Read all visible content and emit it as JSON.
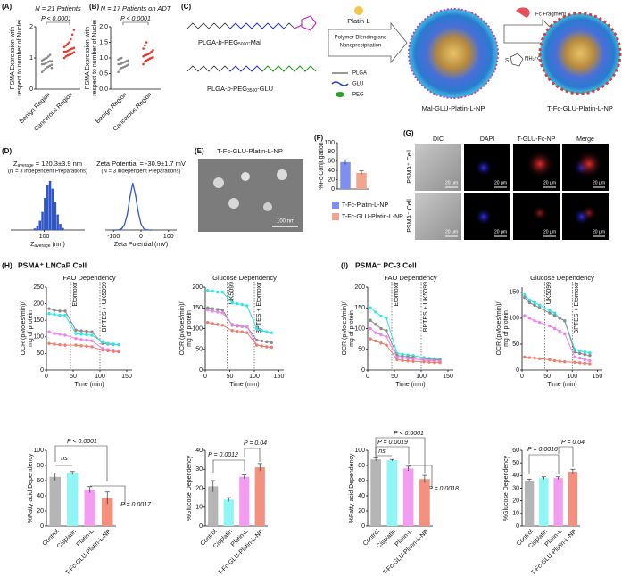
{
  "panel_labels": [
    "(A)",
    "(B)",
    "(C)",
    "(D)",
    "(E)",
    "(F)",
    "(G)"
  ],
  "section_H": {
    "letter": "(H)",
    "title": "PSMA⁺ LNCaP Cell"
  },
  "section_I": {
    "letter": "(I)",
    "title": "PSMA⁻ PC-3 Cell"
  },
  "diagram": {
    "polymer1": [
      "PLGA-",
      "b",
      "-PEG",
      "5000",
      "-Mal"
    ],
    "polymer2": [
      "PLGA-",
      "b",
      "-PEG",
      "3500",
      "-GLU"
    ],
    "drug": "Platin-L",
    "process": [
      "Polymer Blending and",
      "Nanoprecipitation"
    ],
    "legend": [
      "PLGA",
      "GLU",
      "PEG"
    ],
    "np1": "Mal-GLU-Platin-L-NP",
    "fragment": "Fc Fragment",
    "reagent_s": "S",
    "reagent": "NH₂⁺Cl⁻",
    "np2": "T-Fc-GLU-Platin-L-NP"
  },
  "tem": {
    "title": "T-Fc-GLU-Platin-L-NP",
    "scale": "100 nm"
  },
  "microscopy": {
    "columns": [
      "DIC",
      "DAPI",
      "T-GLU-Fc-NP",
      "Merge"
    ],
    "rows": [
      "PSMA⁺ Cell",
      "PSMA⁻ Cell"
    ],
    "scale": "20 μm"
  },
  "chart_data": [
    {
      "type": "dot",
      "title": "N = 21 Patients",
      "ylabel": [
        "PSMA Expression with",
        "respect to number of Nuclei"
      ],
      "categories": [
        "Benign Region",
        "Cancerous Region"
      ],
      "colors": [
        "#8a8a8a",
        "#e8392b"
      ],
      "values": [
        [
          0.55,
          0.6,
          0.65,
          0.7,
          0.72,
          0.75,
          0.78,
          0.8,
          0.8,
          0.82,
          0.85,
          0.88,
          0.9,
          0.9,
          0.92,
          0.95,
          0.98,
          1.0,
          1.05,
          1.1,
          0.68
        ],
        [
          1.0,
          1.05,
          1.08,
          1.1,
          1.12,
          1.15,
          1.18,
          1.2,
          1.2,
          1.22,
          1.25,
          1.28,
          1.3,
          1.32,
          1.35,
          1.4,
          1.45,
          1.5,
          1.6,
          1.75,
          1.9
        ]
      ],
      "ylim": [
        0,
        2
      ],
      "yticks": [
        0,
        1,
        2
      ],
      "annotations": [
        "P < 0.0001"
      ]
    },
    {
      "type": "dot",
      "title": "N = 17 Patients on ADT",
      "ylabel": [
        "PSMA Expression with",
        "respect to number of Nuclei"
      ],
      "categories": [
        "Benign Region",
        "Cancerous Region"
      ],
      "colors": [
        "#8a8a8a",
        "#e8392b"
      ],
      "values": [
        [
          0.55,
          0.62,
          0.68,
          0.7,
          0.72,
          0.75,
          0.78,
          0.8,
          0.8,
          0.82,
          0.85,
          0.87,
          0.9,
          0.92,
          0.95,
          0.98,
          1.0
        ],
        [
          0.8,
          0.88,
          0.92,
          0.95,
          0.98,
          1.0,
          1.02,
          1.05,
          1.08,
          1.1,
          1.12,
          1.15,
          1.2,
          1.25,
          1.3,
          1.4,
          1.5
        ]
      ],
      "ylim": [
        0,
        2
      ],
      "yticks": [
        {
          "value": 0,
          "label": "0.0"
        },
        {
          "value": 0.5,
          "label": "0.5"
        },
        {
          "value": 1,
          "label": "1.0"
        },
        {
          "value": 1.5,
          "label": "1.5"
        },
        {
          "value": 2,
          "label": "2.0"
        }
      ],
      "annotations": [
        "P < 0.0001"
      ]
    },
    {
      "type": "histogram",
      "title": [
        "Z",
        "average",
        " = 120.3±3.9 nm"
      ],
      "subtitle": "(N = 3 independent Preparations)",
      "xlabel": [
        "Z",
        "average",
        " (nm)"
      ],
      "color": "#2f55c8",
      "xscale": "log",
      "bins": [
        60,
        68,
        77,
        87,
        98,
        111,
        125,
        141,
        160,
        181,
        204,
        231,
        261
      ],
      "values": [
        3,
        8,
        18,
        35,
        62,
        88,
        95,
        80,
        55,
        30,
        12,
        4
      ],
      "xlim": [
        20,
        700
      ],
      "xticks": [
        100
      ],
      "ylim": [
        0,
        100
      ]
    },
    {
      "type": "curve",
      "title": [
        "Zeta Potential = -30.9±1.7 mV"
      ],
      "subtitle": "(N = 3 independent Preparations)",
      "xlabel": [
        "Zeta Potential (mV)"
      ],
      "color": "#2f55c8",
      "x": [
        -100,
        -90,
        -80,
        -70,
        -60,
        -50,
        -40,
        -30,
        -20,
        -10,
        0,
        10,
        20,
        30,
        40
      ],
      "values": [
        0,
        0,
        0.5,
        3,
        12,
        33,
        71,
        100,
        74,
        38,
        13,
        3,
        0.5,
        0,
        0
      ],
      "xlim": [
        -130,
        130
      ],
      "xticks": [
        -100,
        0,
        100
      ],
      "ylim": [
        0,
        110
      ]
    },
    {
      "type": "bar",
      "ylabel": [
        "%Fc Conjugation"
      ],
      "series": [
        {
          "name": "T-Fc-Platin-L-NP",
          "color": "#7f8ff0",
          "values": [
            58
          ],
          "errors": [
            5
          ]
        },
        {
          "name": "T-Fc-GLU-Platin-L-NP",
          "color": "#f4a48c",
          "values": [
            35
          ],
          "errors": [
            4
          ]
        }
      ],
      "ylim": [
        0,
        100
      ],
      "yticks": [
        0,
        20,
        40,
        60,
        80,
        100
      ]
    },
    {
      "type": "line",
      "title": [
        "FAO Dependency"
      ],
      "ylabel": [
        "OCR (pMoles/min)/",
        "mg of protein"
      ],
      "xlabel": [
        "Time (min)"
      ],
      "x": [
        5,
        15,
        25,
        35,
        55,
        65,
        75,
        85,
        105,
        115,
        125,
        135
      ],
      "series": [
        {
          "color": "#8a8a8a",
          "values": [
            185,
            180,
            178,
            178,
            120,
            118,
            117,
            115,
            80,
            78,
            77,
            76
          ]
        },
        {
          "color": "#2ee6e6",
          "values": [
            170,
            168,
            165,
            165,
            110,
            108,
            106,
            105,
            85,
            80,
            78,
            76
          ]
        },
        {
          "color": "#ee82ee",
          "values": [
            115,
            110,
            108,
            105,
            95,
            92,
            90,
            88,
            65,
            62,
            60,
            58
          ]
        },
        {
          "color": "#f07c6c",
          "values": [
            80,
            78,
            76,
            75,
            75,
            73,
            72,
            70,
            60,
            58,
            56,
            55
          ]
        }
      ],
      "vlines": [
        {
          "x": 45,
          "label": "Etomoxir"
        },
        {
          "x": 100,
          "label": "BPTES + UK5099"
        }
      ],
      "xlim": [
        0,
        160
      ],
      "xticks": [
        0,
        50,
        100,
        150
      ],
      "ylim": [
        0,
        250
      ],
      "yticks": [
        0,
        50,
        100,
        150,
        200,
        250
      ]
    },
    {
      "type": "line",
      "title": [
        "Glucose Dependency"
      ],
      "ylabel": [
        "OCR (pMoles/min)/",
        "mg of protein"
      ],
      "xlabel": [
        "Time (min)"
      ],
      "x": [
        5,
        15,
        25,
        35,
        55,
        65,
        75,
        85,
        105,
        115,
        125,
        135
      ],
      "series": [
        {
          "color": "#2ee6e6",
          "values": [
            192,
            190,
            188,
            188,
            162,
            160,
            158,
            155,
            100,
            95,
            92,
            90
          ]
        },
        {
          "color": "#8a8a8a",
          "values": [
            150,
            148,
            146,
            145,
            108,
            106,
            105,
            104,
            72,
            70,
            68,
            66
          ]
        },
        {
          "color": "#ee82ee",
          "values": [
            145,
            142,
            140,
            138,
            110,
            108,
            106,
            105,
            60,
            58,
            56,
            55
          ]
        },
        {
          "color": "#f07c6c",
          "values": [
            115,
            112,
            110,
            108,
            95,
            93,
            92,
            90,
            60,
            58,
            56,
            55
          ]
        }
      ],
      "vlines": [
        {
          "x": 45,
          "label": "UK5099"
        },
        {
          "x": 100,
          "label": "BPTES + Etomoxir"
        }
      ],
      "xlim": [
        0,
        160
      ],
      "xticks": [
        0,
        50,
        100,
        150
      ],
      "ylim": [
        0,
        200
      ],
      "yticks": [
        0,
        50,
        100,
        150,
        200
      ]
    },
    {
      "type": "line",
      "title": [
        "FAO Dependency"
      ],
      "ylabel": [
        "OCR (pMoles/min)/",
        "mg of protein"
      ],
      "xlabel": [
        "Time (min)"
      ],
      "x": [
        5,
        15,
        25,
        35,
        55,
        65,
        75,
        85,
        105,
        115,
        125,
        135
      ],
      "series": [
        {
          "color": "#2ee6e6",
          "values": [
            150,
            140,
            130,
            125,
            40,
            38,
            36,
            35,
            30,
            28,
            27,
            26
          ]
        },
        {
          "color": "#8a8a8a",
          "values": [
            120,
            110,
            100,
            95,
            35,
            33,
            32,
            31,
            27,
            26,
            25,
            24
          ]
        },
        {
          "color": "#ee82ee",
          "values": [
            100,
            90,
            85,
            80,
            30,
            29,
            28,
            27,
            24,
            23,
            22,
            21
          ]
        },
        {
          "color": "#f07c6c",
          "values": [
            75,
            70,
            65,
            60,
            25,
            23,
            22,
            21,
            20,
            19,
            18,
            18
          ]
        }
      ],
      "vlines": [
        {
          "x": 45,
          "label": "Etomoxir"
        },
        {
          "x": 100,
          "label": "BPTES + UK5099"
        }
      ],
      "xlim": [
        0,
        160
      ],
      "xticks": [
        0,
        50,
        100,
        150
      ],
      "ylim": [
        0,
        200
      ],
      "yticks": [
        0,
        50,
        100,
        150,
        200
      ]
    },
    {
      "type": "line",
      "title": [
        "Glucose Dependency"
      ],
      "ylabel": [
        "OCR (pMoles/min)/",
        "mg of protein"
      ],
      "xlabel": [
        "Time (min)"
      ],
      "x": [
        5,
        15,
        25,
        35,
        55,
        65,
        75,
        85,
        105,
        115,
        125,
        135
      ],
      "series": [
        {
          "color": "#2ee6e6",
          "values": [
            145,
            135,
            130,
            125,
            115,
            110,
            100,
            95,
            40,
            37,
            35,
            33
          ]
        },
        {
          "color": "#8a8a8a",
          "values": [
            140,
            130,
            125,
            120,
            110,
            105,
            100,
            95,
            35,
            32,
            30,
            28
          ]
        },
        {
          "color": "#ee82ee",
          "values": [
            105,
            100,
            95,
            92,
            85,
            80,
            75,
            70,
            25,
            23,
            20,
            18
          ]
        },
        {
          "color": "#f07c6c",
          "values": [
            25,
            24,
            23,
            22,
            20,
            18,
            17,
            16,
            15,
            14,
            13,
            12
          ]
        }
      ],
      "vlines": [
        {
          "x": 45,
          "label": "UK5099"
        },
        {
          "x": 100,
          "label": "BPTES + Etomoxir"
        }
      ],
      "xlim": [
        0,
        160
      ],
      "xticks": [
        0,
        50,
        100,
        150
      ],
      "ylim": [
        0,
        160
      ],
      "yticks": [
        0,
        50,
        100,
        150
      ]
    },
    {
      "type": "bar",
      "ylabel": [
        "%Fatty acid Dependency"
      ],
      "categories": [
        "Control",
        "Cisplatin",
        "Platin-L",
        "T-Fc-GLU-Platin-L-NP"
      ],
      "colors": [
        "#b5b5b5",
        "#8ff5f5",
        "#f29cf2",
        "#f4907e"
      ],
      "values": [
        65,
        70,
        48,
        37
      ],
      "errors": [
        5,
        2,
        4,
        8
      ],
      "ylim": [
        0,
        100
      ],
      "yticks": [
        0,
        20,
        40,
        60,
        80,
        100
      ],
      "annotations": [
        "P < 0.0001",
        "ns",
        "P = 0.0017"
      ]
    },
    {
      "type": "bar",
      "ylabel": [
        "%Glucose Dependency"
      ],
      "categories": [
        "Control",
        "Cisplatin",
        "Platin-L",
        "T-Fc-GLU-Platin-L-NP"
      ],
      "colors": [
        "#b5b5b5",
        "#8ff5f5",
        "#f29cf2",
        "#f4907e"
      ],
      "values": [
        21,
        14,
        26,
        31
      ],
      "errors": [
        3,
        1,
        1,
        2
      ],
      "ylim": [
        0,
        40
      ],
      "yticks": [
        0,
        10,
        20,
        30,
        40
      ],
      "annotations": [
        "P = 0.0012",
        "P = 0.04"
      ]
    },
    {
      "type": "bar",
      "ylabel": [
        "%Fatty acid Dependency"
      ],
      "categories": [
        "Control",
        "Cisplatin",
        "Platin-L",
        "T-Fc-GLU-Platin-L-NP"
      ],
      "colors": [
        "#b5b5b5",
        "#8ff5f5",
        "#f29cf2",
        "#f4907e"
      ],
      "values": [
        88,
        87,
        76,
        62
      ],
      "errors": [
        2,
        1,
        3,
        5
      ],
      "ylim": [
        0,
        100
      ],
      "yticks": [
        0,
        20,
        40,
        60,
        80,
        100
      ],
      "annotations": [
        "P < 0.0001",
        "P = 0.0019",
        "ns",
        "P = 0.0018"
      ]
    },
    {
      "type": "bar",
      "ylabel": [
        "%Glucose Dependency"
      ],
      "categories": [
        "Control",
        "Cisplatin",
        "Platin-L",
        "T-Fc-GLU-Platin-L-NP"
      ],
      "colors": [
        "#b5b5b5",
        "#8ff5f5",
        "#f29cf2",
        "#f4907e"
      ],
      "values": [
        36,
        38,
        38,
        43
      ],
      "errors": [
        1,
        1,
        1,
        2
      ],
      "ylim": [
        0,
        60
      ],
      "yticks": [
        0,
        10,
        20,
        30,
        40,
        50,
        60
      ],
      "annotations": [
        "P = 0.0016",
        "P = 0.04"
      ]
    }
  ]
}
